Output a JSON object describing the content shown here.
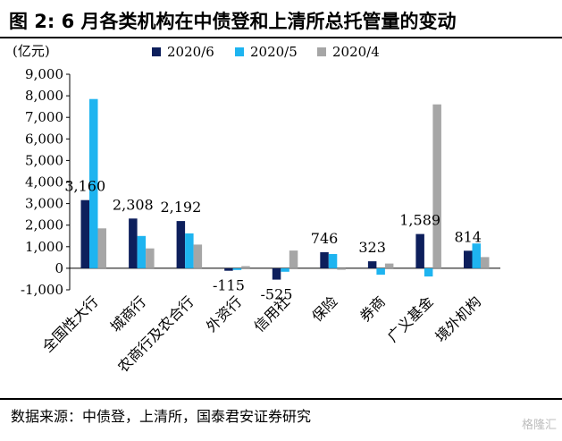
{
  "figure": {
    "title": "图 2:  6 月各类机构在中债登和上清所总托管量的变动",
    "source": "数据来源：中债登，上清所，国泰君安证券研究",
    "watermark": "格隆汇"
  },
  "colors": {
    "2020/6": "#0d1f5c",
    "2020/5": "#1eb4f0",
    "2020/4": "#a6a6a6"
  },
  "chart_data": {
    "type": "bar",
    "unit_label": "(亿元)",
    "categories": [
      "全国性大行",
      "城商行",
      "农商行及农合行",
      "外资行",
      "信用社",
      "保险",
      "券商",
      "广义基金",
      "境外机构"
    ],
    "series": [
      {
        "name": "2020/6",
        "values": [
          3160,
          2308,
          2192,
          -115,
          -525,
          746,
          323,
          1589,
          814
        ]
      },
      {
        "name": "2020/5",
        "values": [
          7850,
          1500,
          1620,
          -80,
          -160,
          660,
          -300,
          -380,
          1150
        ]
      },
      {
        "name": "2020/4",
        "values": [
          1850,
          920,
          1100,
          100,
          820,
          -70,
          220,
          7600,
          520
        ]
      }
    ],
    "data_labels": [
      "3,160",
      "2,308",
      "2,192",
      "-115",
      "-525",
      "746",
      "323",
      "1,589",
      "814"
    ],
    "yticks": [
      "-1,000",
      "0",
      "1,000",
      "2,000",
      "3,000",
      "4,000",
      "5,000",
      "6,000",
      "7,000",
      "8,000",
      "9,000"
    ],
    "ylim": [
      -1000,
      9000
    ],
    "legend_position": "top",
    "grid": false
  }
}
